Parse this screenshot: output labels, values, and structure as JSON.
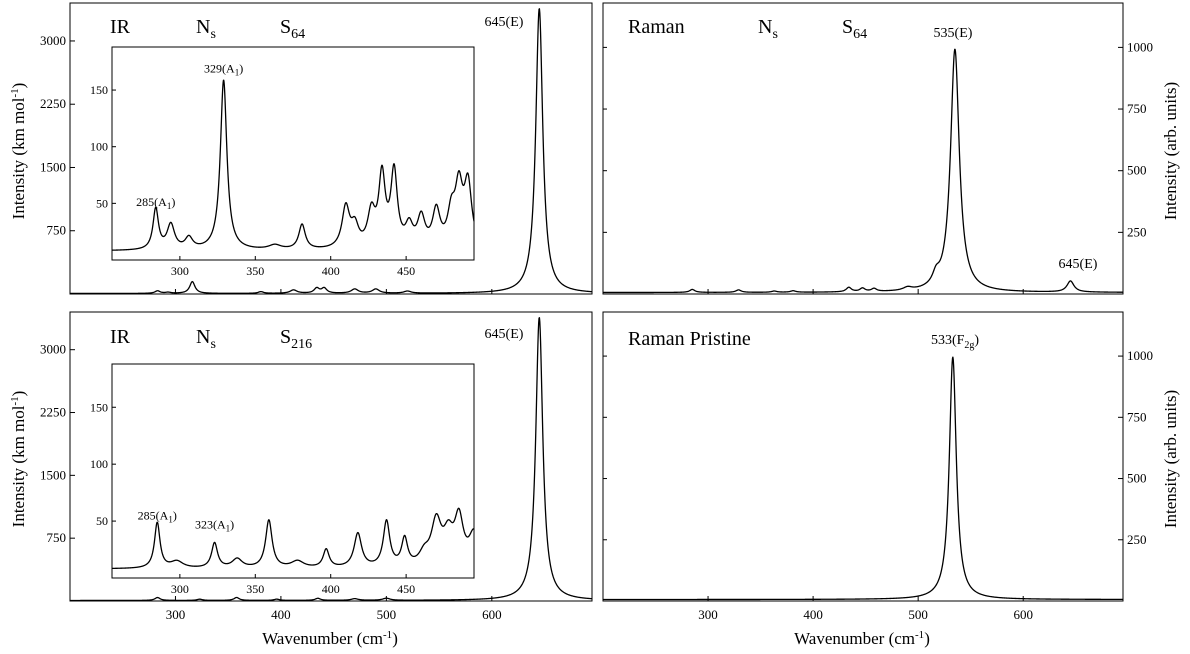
{
  "chart_data": [
    {
      "type": "line",
      "panel_label": "IR",
      "panel_mid": "N",
      "panel_mid_sub": "s",
      "panel_right": "S",
      "panel_right_sub": "64",
      "ylabel": "Intensity (km mol",
      "ylabel_sup": "-1",
      "ylabel_end": ")",
      "xlim": [
        200,
        695
      ],
      "ylim": [
        0,
        3450
      ],
      "yticks": [
        "750",
        "1500",
        "2250",
        "3000"
      ],
      "ytick_values": [
        750,
        1500,
        2250,
        3000
      ],
      "xticks": [
        300,
        400,
        500,
        600
      ],
      "peaks": [
        {
          "x": 283,
          "h": 30,
          "w": 3
        },
        {
          "x": 293,
          "h": 12,
          "w": 3
        },
        {
          "x": 316,
          "h": 140,
          "w": 3
        },
        {
          "x": 381,
          "h": 20,
          "w": 3
        },
        {
          "x": 412,
          "h": 40,
          "w": 4
        },
        {
          "x": 434,
          "h": 60,
          "w": 3
        },
        {
          "x": 441,
          "h": 60,
          "w": 3
        },
        {
          "x": 470,
          "h": 50,
          "w": 4
        },
        {
          "x": 490,
          "h": 50,
          "w": 4
        },
        {
          "x": 520,
          "h": 25,
          "w": 4
        },
        {
          "x": 645,
          "h": 3380,
          "w": 4
        }
      ],
      "peak_annotation": "645(E)",
      "inset": {
        "xlim": [
          255,
          495
        ],
        "ylim": [
          0,
          188
        ],
        "yticks": [
          "50",
          "100",
          "150"
        ],
        "ytick_values": [
          50,
          100,
          150
        ],
        "xticks": [
          "300",
          "350",
          "400",
          "450"
        ],
        "xtick_values": [
          300,
          350,
          400,
          450
        ],
        "peaks": [
          {
            "x": 284,
            "h": 36,
            "w": 2.2
          },
          {
            "x": 294,
            "h": 22,
            "w": 3
          },
          {
            "x": 306,
            "h": 10,
            "w": 3
          },
          {
            "x": 329,
            "h": 150,
            "w": 2.6
          },
          {
            "x": 363,
            "h": 4,
            "w": 5
          },
          {
            "x": 381,
            "h": 22,
            "w": 2.6
          },
          {
            "x": 410,
            "h": 36,
            "w": 3
          },
          {
            "x": 416,
            "h": 18,
            "w": 3
          },
          {
            "x": 427,
            "h": 30,
            "w": 3
          },
          {
            "x": 434,
            "h": 62,
            "w": 2.6
          },
          {
            "x": 442,
            "h": 66,
            "w": 2.6
          },
          {
            "x": 452,
            "h": 18,
            "w": 3
          },
          {
            "x": 460,
            "h": 26,
            "w": 3
          },
          {
            "x": 470,
            "h": 32,
            "w": 3
          },
          {
            "x": 480,
            "h": 28,
            "w": 3
          },
          {
            "x": 485,
            "h": 50,
            "w": 3
          },
          {
            "x": 491,
            "h": 55,
            "w": 3
          }
        ],
        "baseline": 8,
        "annotations": [
          {
            "text": "285(A",
            "sub": "1",
            "tail": ")",
            "x": 284,
            "y": 44
          },
          {
            "text": "329(A",
            "sub": "1",
            "tail": ")",
            "x": 329,
            "y": 162
          }
        ]
      }
    },
    {
      "type": "line",
      "panel_label": "Raman",
      "panel_mid": "N",
      "panel_mid_sub": "s",
      "panel_right": "S",
      "panel_right_sub": "64",
      "ylabel": "Intensity (arb. units)",
      "xlim": [
        200,
        695
      ],
      "ylim": [
        0,
        1180
      ],
      "yticks": [
        "250",
        "500",
        "750",
        "1000"
      ],
      "ytick_values": [
        250,
        500,
        750,
        1000
      ],
      "xticks": [
        300,
        400,
        500,
        600
      ],
      "peaks": [
        {
          "x": 285,
          "h": 12,
          "w": 3
        },
        {
          "x": 329,
          "h": 10,
          "w": 3
        },
        {
          "x": 363,
          "h": 5,
          "w": 3
        },
        {
          "x": 381,
          "h": 6,
          "w": 3
        },
        {
          "x": 434,
          "h": 18,
          "w": 3
        },
        {
          "x": 447,
          "h": 14,
          "w": 3
        },
        {
          "x": 458,
          "h": 12,
          "w": 3
        },
        {
          "x": 490,
          "h": 12,
          "w": 5
        },
        {
          "x": 517,
          "h": 40,
          "w": 4
        },
        {
          "x": 535,
          "h": 985,
          "w": 5
        },
        {
          "x": 645,
          "h": 45,
          "w": 4
        }
      ],
      "peak_annotation": "535(E)",
      "peak_annotation_2": "645(E)"
    },
    {
      "type": "line",
      "panel_label": "IR",
      "panel_mid": "N",
      "panel_mid_sub": "s",
      "panel_right": "S",
      "panel_right_sub": "216",
      "ylabel": "Intensity (km mol",
      "ylabel_sup": "-1",
      "ylabel_end": ")",
      "xlabel": "Wavenumber (cm",
      "xlabel_sup": "-1",
      "xlabel_end": ")",
      "xlim": [
        200,
        695
      ],
      "ylim": [
        0,
        3450
      ],
      "yticks": [
        "750",
        "1500",
        "2250",
        "3000"
      ],
      "ytick_values": [
        750,
        1500,
        2250,
        3000
      ],
      "xticks": [
        "300",
        "400",
        "500",
        "600"
      ],
      "xtick_values": [
        300,
        400,
        500,
        600
      ],
      "peaks": [
        {
          "x": 283,
          "h": 35,
          "w": 3
        },
        {
          "x": 323,
          "h": 15,
          "w": 3
        },
        {
          "x": 358,
          "h": 35,
          "w": 3
        },
        {
          "x": 396,
          "h": 15,
          "w": 3
        },
        {
          "x": 435,
          "h": 25,
          "w": 3
        },
        {
          "x": 470,
          "h": 20,
          "w": 4
        },
        {
          "x": 500,
          "h": 25,
          "w": 4
        },
        {
          "x": 645,
          "h": 3380,
          "w": 4
        }
      ],
      "peak_annotation": "645(E)",
      "inset": {
        "xlim": [
          255,
          495
        ],
        "ylim": [
          0,
          188
        ],
        "yticks": [
          "50",
          "100",
          "150"
        ],
        "ytick_values": [
          50,
          100,
          150
        ],
        "xticks": [
          "300",
          "350",
          "400",
          "450"
        ],
        "xtick_values": [
          300,
          350,
          400,
          450
        ],
        "peaks": [
          {
            "x": 285,
            "h": 40,
            "w": 2.2
          },
          {
            "x": 298,
            "h": 6,
            "w": 5
          },
          {
            "x": 323,
            "h": 22,
            "w": 2.4
          },
          {
            "x": 338,
            "h": 8,
            "w": 4
          },
          {
            "x": 359,
            "h": 42,
            "w": 2.6
          },
          {
            "x": 378,
            "h": 6,
            "w": 5
          },
          {
            "x": 397,
            "h": 16,
            "w": 2.4
          },
          {
            "x": 418,
            "h": 30,
            "w": 3
          },
          {
            "x": 437,
            "h": 40,
            "w": 2.6
          },
          {
            "x": 449,
            "h": 24,
            "w": 2.4
          },
          {
            "x": 462,
            "h": 10,
            "w": 4
          },
          {
            "x": 470,
            "h": 38,
            "w": 4
          },
          {
            "x": 478,
            "h": 25,
            "w": 4
          },
          {
            "x": 485,
            "h": 40,
            "w": 3.5
          },
          {
            "x": 495,
            "h": 28,
            "w": 4
          }
        ],
        "baseline": 8,
        "annotations": [
          {
            "text": "285(A",
            "sub": "1",
            "tail": ")",
            "x": 285,
            "y": 48
          },
          {
            "text": "323(A",
            "sub": "1",
            "tail": ")",
            "x": 323,
            "y": 40
          }
        ]
      }
    },
    {
      "type": "line",
      "panel_label": "Raman Pristine",
      "ylabel": "Intensity (arb. units)",
      "xlabel": "Wavenumber (cm",
      "xlabel_sup": "-1",
      "xlabel_end": ")",
      "xlim": [
        200,
        695
      ],
      "ylim": [
        0,
        1180
      ],
      "yticks": [
        "250",
        "500",
        "750",
        "1000"
      ],
      "ytick_values": [
        250,
        500,
        750,
        1000
      ],
      "xticks": [
        "300",
        "400",
        "500",
        "600"
      ],
      "xtick_values": [
        300,
        400,
        500,
        600
      ],
      "peaks": [
        {
          "x": 533,
          "h": 990,
          "w": 4
        }
      ],
      "peak_annotation": "533(F",
      "peak_annotation_sub": "2g",
      "peak_annotation_end": ")"
    }
  ]
}
